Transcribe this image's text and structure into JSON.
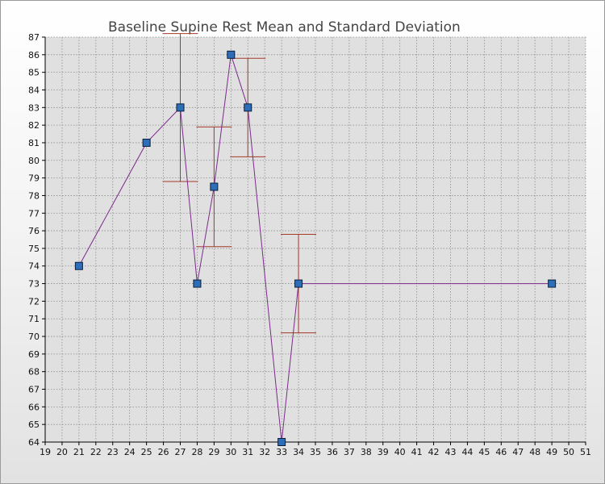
{
  "chart_data": {
    "type": "scatter",
    "title": "Baseline Supine Rest Mean and Standard Deviation",
    "xlabel": "",
    "ylabel": "",
    "xlim": [
      19,
      51
    ],
    "ylim": [
      64,
      87
    ],
    "x_ticks": [
      19,
      20,
      21,
      22,
      23,
      24,
      25,
      26,
      27,
      28,
      29,
      30,
      31,
      32,
      33,
      34,
      35,
      36,
      37,
      38,
      39,
      40,
      41,
      42,
      43,
      44,
      45,
      46,
      47,
      48,
      49,
      50,
      51
    ],
    "y_ticks": [
      64,
      65,
      66,
      67,
      68,
      69,
      70,
      71,
      72,
      73,
      74,
      75,
      76,
      77,
      78,
      79,
      80,
      81,
      82,
      83,
      84,
      85,
      86,
      87
    ],
    "grid": true,
    "connect_points": true,
    "series": [
      {
        "points": [
          {
            "x": 21,
            "y": 74
          },
          {
            "x": 25,
            "y": 81
          },
          {
            "x": 27,
            "y": 83,
            "err_low": 78.8,
            "err_high": 87.2
          },
          {
            "x": 28,
            "y": 73
          },
          {
            "x": 29,
            "y": 78.5,
            "err_low": 75.1,
            "err_high": 81.9
          },
          {
            "x": 30,
            "y": 86
          },
          {
            "x": 31,
            "y": 83,
            "err_low": 80.2,
            "err_high": 85.8
          },
          {
            "x": 33,
            "y": 64
          },
          {
            "x": 34,
            "y": 73,
            "err_low": 70.2,
            "err_high": 75.8
          },
          {
            "x": 49,
            "y": 73
          }
        ]
      }
    ],
    "colors": {
      "plot_background": "#e0e0e0",
      "grid": "#8c8c8c",
      "line": "#7b2a8a",
      "marker_fill": "#2d6eb8",
      "marker_stroke": "#0a1f3d",
      "error_bar": "#a33a2a",
      "axis": "#000000",
      "tick_text": "#111111"
    }
  }
}
